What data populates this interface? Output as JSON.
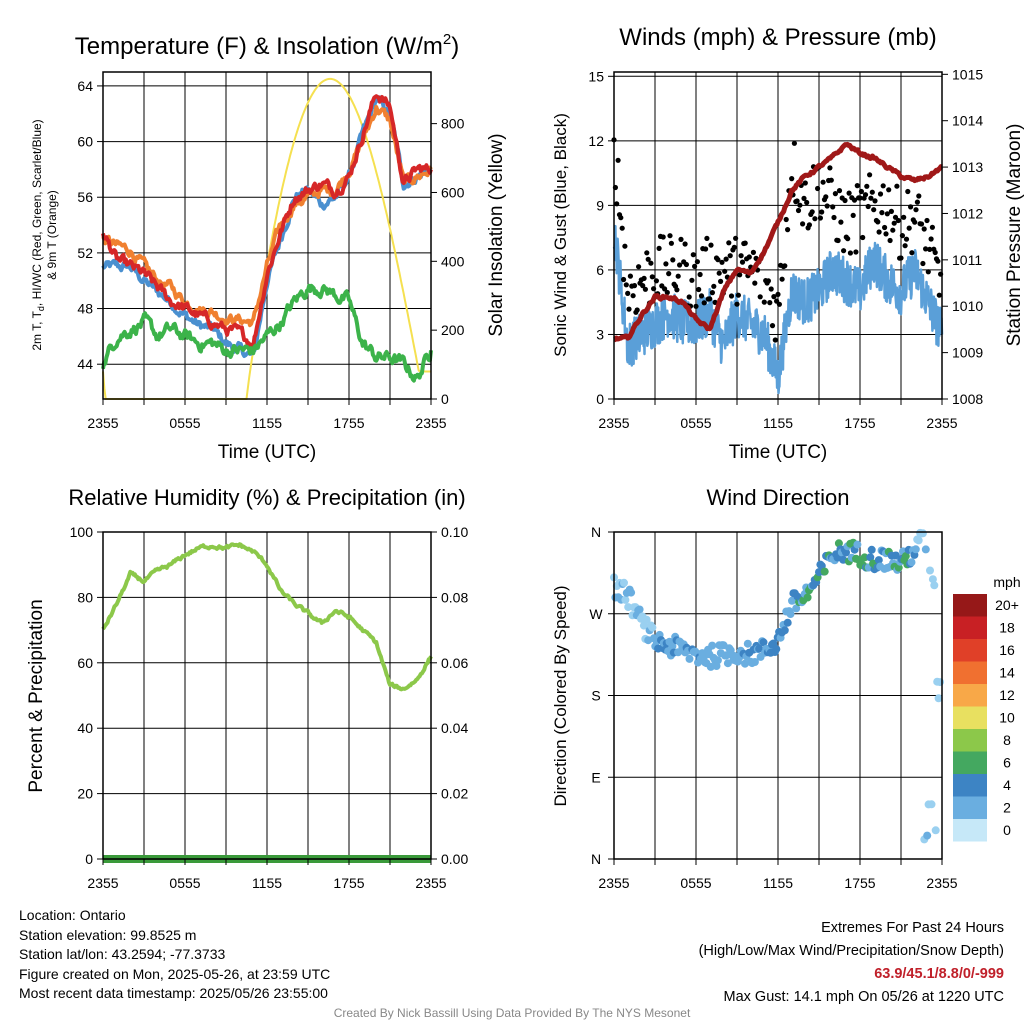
{
  "panels": {
    "temp": {
      "title": "Temperature (F) & Insolation (W/m",
      "title_sup": "2",
      "title_close": ")",
      "ylabel_line1": "2m T, T",
      "ylabel_sub": "d",
      "ylabel_line1b": ", HI/WC (Red, Green, Scarlet/Blue)",
      "ylabel_line2": "& 9m T (Orange)",
      "y2label": "Solar Insolation (Yellow)",
      "xlabel": "Time (UTC)"
    },
    "wind": {
      "title": "Winds (mph) & Pressure (mb)",
      "ylabel": "Sonic Wind & Gust (Blue, Black)",
      "y2label": "Station Pressure (Maroon)",
      "xlabel": "Time (UTC)"
    },
    "rh": {
      "title": "Relative Humidity (%) & Precipitation (in)",
      "ylabel": "Percent & Precipitation"
    },
    "dir": {
      "title": "Wind Direction",
      "ylabel": "Direction (Colored By Speed)",
      "legend_title": "mph",
      "legend_labels": [
        "20+",
        "18",
        "16",
        "14",
        "12",
        "10",
        "8",
        "6",
        "4",
        "2",
        "0"
      ]
    }
  },
  "info": {
    "location": "Location: Ontario",
    "elevation": "Station elevation: 99.8525 m",
    "latlon": "Station lat/lon: 43.2594; -77.3733",
    "created": "Figure created on Mon, 2025-05-26, at 23:59 UTC",
    "recent": "Most recent data timestamp: 2025/05/26 23:55:00"
  },
  "extremes": {
    "title": "Extremes For Past 24 Hours",
    "subtitle": "(High/Low/Max Wind/Precipitation/Snow Depth)",
    "values": "63.9/45.1/8.8/0/-999",
    "gust": "Max Gust: 14.1 mph On 05/26 at 1220 UTC"
  },
  "footer": "Created By Nick Bassill Using Data Provided By The NYS Mesonet",
  "colors": {
    "temp_red": "#d62728",
    "temp_orange": "#f08030",
    "temp_blue": "#4a90d0",
    "dewpoint_green": "#3cb34a",
    "solar_yellow": "#f5e050",
    "wind_blue": "#5a9fd8",
    "gust_black": "#000000",
    "pressure_maroon": "#a01818",
    "rh_green": "#8cc84a",
    "precip_green": "#3a9a3a",
    "speed_scale": [
      "#c6e8f8",
      "#9ad0f0",
      "#6aaee0",
      "#3d84c4",
      "#44a860",
      "#8cc84a",
      "#e8e060",
      "#f8a848",
      "#f07030",
      "#e04028",
      "#c82024",
      "#961818"
    ]
  },
  "chart_data": [
    {
      "type": "line",
      "title": "Temperature (F) & Insolation (W/m2)",
      "xlabel": "Time (UTC)",
      "ylabel": "2m T, Td, HI/WC (Red, Green, Scarlet/Blue) & 9m T (Orange)",
      "y2label": "Solar Insolation (Yellow)",
      "x_ticks": [
        "2355",
        "0555",
        "1155",
        "1755",
        "2355"
      ],
      "y_ticks": [
        44,
        48,
        52,
        56,
        60,
        64
      ],
      "y2_ticks": [
        0,
        200,
        400,
        600,
        800
      ],
      "ylim": [
        41.5,
        65
      ],
      "y2lim": [
        0,
        950
      ],
      "x": [
        0,
        1,
        2,
        3,
        4,
        5,
        6,
        7,
        8,
        9,
        10,
        11,
        12,
        13,
        14,
        15,
        16,
        17,
        18,
        19,
        20,
        21,
        22,
        23,
        24
      ],
      "series": [
        {
          "name": "2m T",
          "values": [
            53.5,
            51.5,
            51,
            50.5,
            49.5,
            48.5,
            48,
            47.5,
            47,
            46.5,
            46.2,
            45.5,
            50.5,
            53.5,
            56,
            56.5,
            57,
            56.5,
            57.5,
            60.5,
            63.5,
            62.5,
            57,
            58,
            58
          ]
        },
        {
          "name": "9m T",
          "values": [
            53,
            52.5,
            52.2,
            51,
            50,
            49.5,
            48.5,
            48,
            47.8,
            47.3,
            47.2,
            47,
            51,
            54,
            55.5,
            56,
            56.5,
            56.5,
            58,
            60,
            62.5,
            61.5,
            57,
            57.5,
            58
          ]
        },
        {
          "name": "HI/WC",
          "values": [
            51,
            51,
            51,
            50,
            49.2,
            48.5,
            47.5,
            46.8,
            46.5,
            45.5,
            45,
            44.5,
            50,
            53,
            56,
            56.5,
            55.5,
            56,
            57.5,
            60.5,
            63,
            62,
            57,
            57.5,
            58
          ]
        },
        {
          "name": "Td",
          "values": [
            44,
            46,
            46.5,
            47,
            46,
            46.5,
            46,
            45.5,
            45.5,
            45,
            45,
            45,
            46,
            47,
            48.5,
            49.5,
            49.5,
            49,
            48.5,
            45.5,
            44.5,
            44.5,
            44,
            43,
            45
          ]
        },
        {
          "name": "Solar Insolation",
          "values": [
            80,
            0,
            0,
            0,
            0,
            0,
            0,
            0,
            0,
            0,
            0,
            20,
            250,
            470,
            650,
            800,
            890,
            930,
            900,
            780,
            600,
            400,
            230,
            110,
            80
          ]
        }
      ]
    },
    {
      "type": "line",
      "title": "Winds (mph) & Pressure (mb)",
      "xlabel": "Time (UTC)",
      "ylabel": "Sonic Wind & Gust (Blue, Black)",
      "y2label": "Station Pressure (Maroon)",
      "x_ticks": [
        "2355",
        "0555",
        "1155",
        "1755",
        "2355"
      ],
      "y_ticks": [
        0,
        3,
        6,
        9,
        12,
        15
      ],
      "y2_ticks": [
        1008,
        1009,
        1010,
        1011,
        1012,
        1013,
        1014,
        1015
      ],
      "ylim": [
        0,
        15.2
      ],
      "y2lim": [
        1008,
        1015.05
      ],
      "x": [
        0,
        1,
        2,
        3,
        4,
        5,
        6,
        7,
        8,
        9,
        10,
        11,
        12,
        13,
        14,
        15,
        16,
        17,
        18,
        19,
        20,
        21,
        22,
        23,
        24
      ],
      "series": [
        {
          "name": "Sonic Wind",
          "values": [
            8,
            2.5,
            3,
            3.5,
            4,
            3.5,
            3.5,
            4,
            2.5,
            4,
            3.5,
            3,
            1,
            5,
            4.5,
            5,
            6,
            5.5,
            5,
            6.5,
            5.5,
            5,
            6,
            4.5,
            3
          ]
        },
        {
          "name": "Gust",
          "values": [
            12,
            5,
            5.5,
            6,
            6,
            6,
            5.5,
            6,
            6,
            6,
            6,
            5.5,
            4,
            11,
            9,
            10,
            9,
            8,
            8.5,
            9,
            9,
            8,
            8.5,
            7,
            5
          ]
        },
        {
          "name": "Station Pressure",
          "values": [
            1009.3,
            1009.3,
            1009.8,
            1010.2,
            1010.2,
            1010.1,
            1009.7,
            1009.5,
            1010.3,
            1010.8,
            1010.7,
            1011.2,
            1011.8,
            1012.5,
            1012.8,
            1013,
            1013.2,
            1013.5,
            1013.3,
            1013.2,
            1013,
            1012.8,
            1012.7,
            1012.8,
            1013
          ]
        }
      ]
    },
    {
      "type": "line",
      "title": "Relative Humidity (%) & Precipitation (in)",
      "xlabel": "",
      "ylabel": "Percent & Precipitation",
      "x_ticks": [
        "2355",
        "0555",
        "1155",
        "1755",
        "2355"
      ],
      "y_ticks": [
        0,
        20,
        40,
        60,
        80,
        100
      ],
      "y2_ticks": [
        0.0,
        0.02,
        0.04,
        0.06,
        0.08,
        0.1
      ],
      "ylim": [
        0,
        100
      ],
      "y2lim": [
        0,
        0.1
      ],
      "x": [
        0,
        1,
        2,
        3,
        4,
        5,
        6,
        7,
        8,
        9,
        10,
        11,
        12,
        13,
        14,
        15,
        16,
        17,
        18,
        19,
        20,
        21,
        22,
        23,
        24
      ],
      "series": [
        {
          "name": "Relative Humidity",
          "values": [
            70,
            78,
            87,
            85,
            88,
            90,
            93,
            95,
            96,
            95,
            96,
            94,
            90,
            82,
            78,
            75,
            72,
            76,
            74,
            70,
            66,
            53,
            52,
            55,
            62
          ]
        },
        {
          "name": "Precipitation",
          "values": [
            0,
            0,
            0,
            0,
            0,
            0,
            0,
            0,
            0,
            0,
            0,
            0,
            0,
            0,
            0,
            0,
            0,
            0,
            0,
            0,
            0,
            0,
            0,
            0,
            0
          ]
        }
      ]
    },
    {
      "type": "scatter",
      "title": "Wind Direction",
      "ylabel": "Direction (Colored By Speed)",
      "x_ticks": [
        "2355",
        "0555",
        "1155",
        "1755",
        "2355"
      ],
      "y_ticks": [
        "N",
        "E",
        "S",
        "W",
        "N"
      ],
      "ylim": [
        0,
        360
      ],
      "legend_title": "mph",
      "legend": [
        "0",
        "2",
        "4",
        "6",
        "8",
        "10",
        "12",
        "14",
        "16",
        "18",
        "20+"
      ],
      "x": [
        0,
        1,
        2,
        3,
        4,
        5,
        6,
        7,
        8,
        9,
        10,
        11,
        12,
        13,
        14,
        15,
        16,
        17,
        18,
        19,
        20,
        21,
        22,
        23,
        24
      ],
      "series": [
        {
          "name": "Direction",
          "values": [
            300,
            290,
            260,
            240,
            235,
            230,
            225,
            223,
            225,
            228,
            225,
            230,
            240,
            280,
            290,
            310,
            335,
            340,
            335,
            330,
            330,
            325,
            340,
            350,
            190
          ]
        }
      ]
    }
  ]
}
